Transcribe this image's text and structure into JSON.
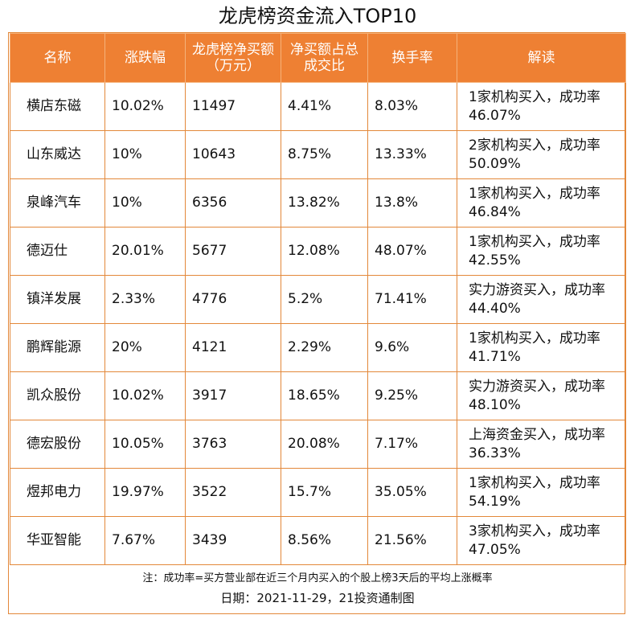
{
  "title": "龙虎榜资金流入TOP10",
  "headers": [
    "名称",
    "涨跌幅",
    "龙虎榜净买额（万元）",
    "净买额占总成交比",
    "换手率",
    "解读"
  ],
  "rows": [
    {
      "name": "横店东磁",
      "change": "10.02%",
      "net_buy": "11497",
      "ratio": "4.41%",
      "turnover": "8.03%",
      "note": "1家机构买入，成功率46.07%"
    },
    {
      "name": "山东威达",
      "change": "10%",
      "net_buy": "10643",
      "ratio": "8.75%",
      "turnover": "13.33%",
      "note": "2家机构买入，成功率50.09%"
    },
    {
      "name": "泉峰汽车",
      "change": "10%",
      "net_buy": "6356",
      "ratio": "13.82%",
      "turnover": "13.8%",
      "note": "1家机构买入，成功率46.84%"
    },
    {
      "name": "德迈仕",
      "change": "20.01%",
      "net_buy": "5677",
      "ratio": "12.08%",
      "turnover": "48.07%",
      "note": "1家机构买入，成功率42.55%"
    },
    {
      "name": "镇洋发展",
      "change": "2.33%",
      "net_buy": "4776",
      "ratio": "5.2%",
      "turnover": "71.41%",
      "note": "实力游资买入，成功率44.40%"
    },
    {
      "name": "鹏辉能源",
      "change": "20%",
      "net_buy": "4121",
      "ratio": "2.29%",
      "turnover": "9.6%",
      "note": "1家机构买入，成功率41.71%"
    },
    {
      "name": "凯众股份",
      "change": "10.02%",
      "net_buy": "3917",
      "ratio": "18.65%",
      "turnover": "9.25%",
      "note": "实力游资买入，成功率48.10%"
    },
    {
      "name": "德宏股份",
      "change": "10.05%",
      "net_buy": "3763",
      "ratio": "20.08%",
      "turnover": "7.17%",
      "note": "上海资金买入，成功率36.33%"
    },
    {
      "name": "煜邦电力",
      "change": "19.97%",
      "net_buy": "3522",
      "ratio": "15.7%",
      "turnover": "35.05%",
      "note": "1家机构买入，成功率54.19%"
    },
    {
      "name": "华亚智能",
      "change": "7.67%",
      "net_buy": "3439",
      "ratio": "8.56%",
      "turnover": "21.56%",
      "note": "3家机构买入，成功率47.05%"
    }
  ],
  "footnote": "注：成功率=买方营业部在近三个月内买入的个股上榜3天后的平均上涨概率",
  "date_line": "日期：2021-11-29，21投资通制图",
  "colors": {
    "header_bg": "#ee8033",
    "border": "#e3883a",
    "header_text": "#ffffff"
  }
}
